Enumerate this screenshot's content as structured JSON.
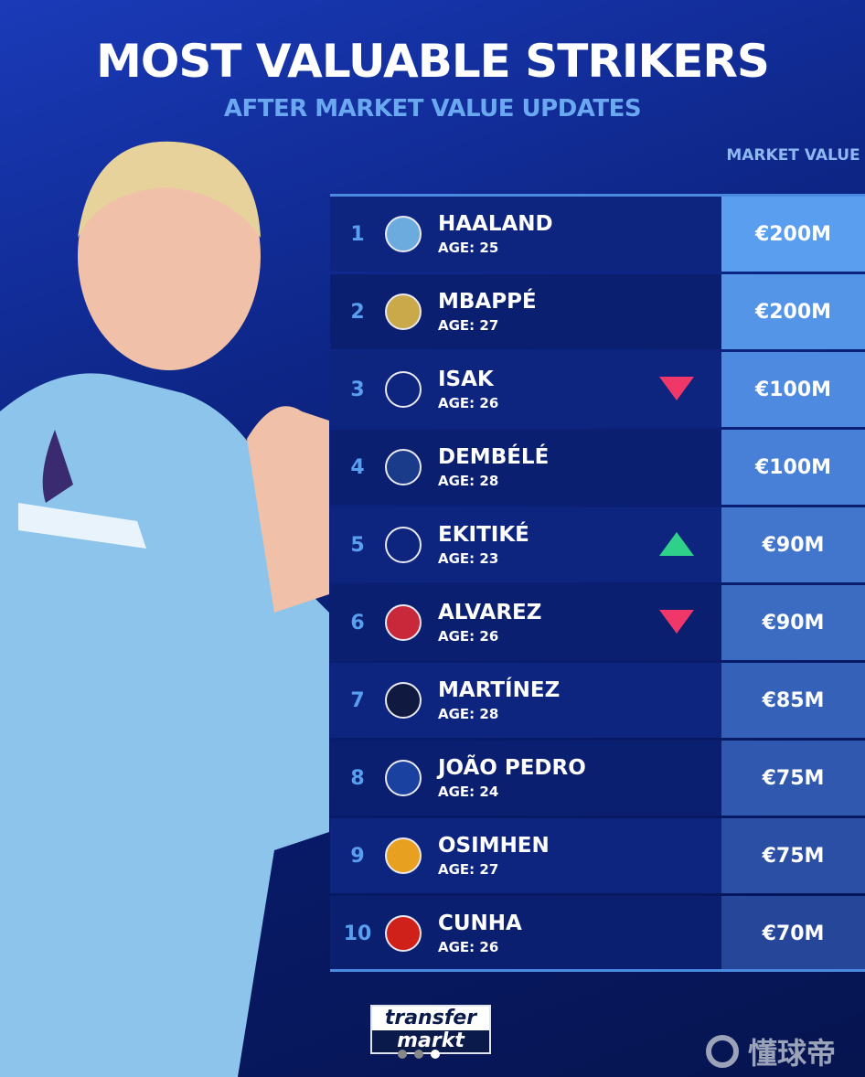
{
  "title": "MOST VALUABLE STRIKERS",
  "subtitle": "AFTER MARKET VALUE UPDATES",
  "column_header": "MARKET VALUE",
  "colors": {
    "down": "#f0376a",
    "up": "#2fd08a",
    "rank": "#5a9ef0"
  },
  "rows": [
    {
      "rank": "1",
      "name": "HAALAND",
      "age": "AGE: 25",
      "value": "€200M",
      "club_icon": "manchester-city-crest",
      "trend": "none",
      "crest": "#6cabdd",
      "val_bg": "#5a9ef0"
    },
    {
      "rank": "2",
      "name": "MBAPPÉ",
      "age": "AGE: 27",
      "value": "€200M",
      "club_icon": "real-madrid-crest",
      "trend": "none",
      "crest": "#c9a94a",
      "val_bg": "#5595e8"
    },
    {
      "rank": "3",
      "name": "ISAK",
      "age": "AGE: 26",
      "value": "€100M",
      "club_icon": "liverpool-crest",
      "trend": "down",
      "crest": "#0e2580",
      "val_bg": "#4d8ae0"
    },
    {
      "rank": "4",
      "name": "DEMBÉLÉ",
      "age": "AGE: 28",
      "value": "€100M",
      "club_icon": "psg-crest",
      "trend": "none",
      "crest": "#1a3a8a",
      "val_bg": "#4780d6"
    },
    {
      "rank": "5",
      "name": "EKITIKÉ",
      "age": "AGE: 23",
      "value": "€90M",
      "club_icon": "liverpool-crest",
      "trend": "up",
      "crest": "#0e2580",
      "val_bg": "#4176cc"
    },
    {
      "rank": "6",
      "name": "ALVAREZ",
      "age": "AGE: 26",
      "value": "€90M",
      "club_icon": "atletico-madrid-crest",
      "trend": "down",
      "crest": "#c8283a",
      "val_bg": "#3b6cc2"
    },
    {
      "rank": "7",
      "name": "MARTÍNEZ",
      "age": "AGE: 28",
      "value": "€85M",
      "club_icon": "inter-crest",
      "trend": "none",
      "crest": "#101a40",
      "val_bg": "#3562b8"
    },
    {
      "rank": "8",
      "name": "JOÃO PEDRO",
      "age": "AGE: 24",
      "value": "€75M",
      "club_icon": "chelsea-crest",
      "trend": "none",
      "crest": "#1a40a0",
      "val_bg": "#3058ae"
    },
    {
      "rank": "9",
      "name": "OSIMHEN",
      "age": "AGE: 27",
      "value": "€75M",
      "club_icon": "galatasaray-crest",
      "trend": "none",
      "crest": "#e8a020",
      "val_bg": "#2b4fa4"
    },
    {
      "rank": "10",
      "name": "CUNHA",
      "age": "AGE: 26",
      "value": "€70M",
      "club_icon": "manchester-united-crest",
      "trend": "none",
      "crest": "#d0201a",
      "val_bg": "#26469a"
    }
  ],
  "logo": {
    "line1": "transfer",
    "line2": "markt"
  },
  "watermark": "懂球帝",
  "carousel": {
    "count": 3,
    "active": 3
  }
}
